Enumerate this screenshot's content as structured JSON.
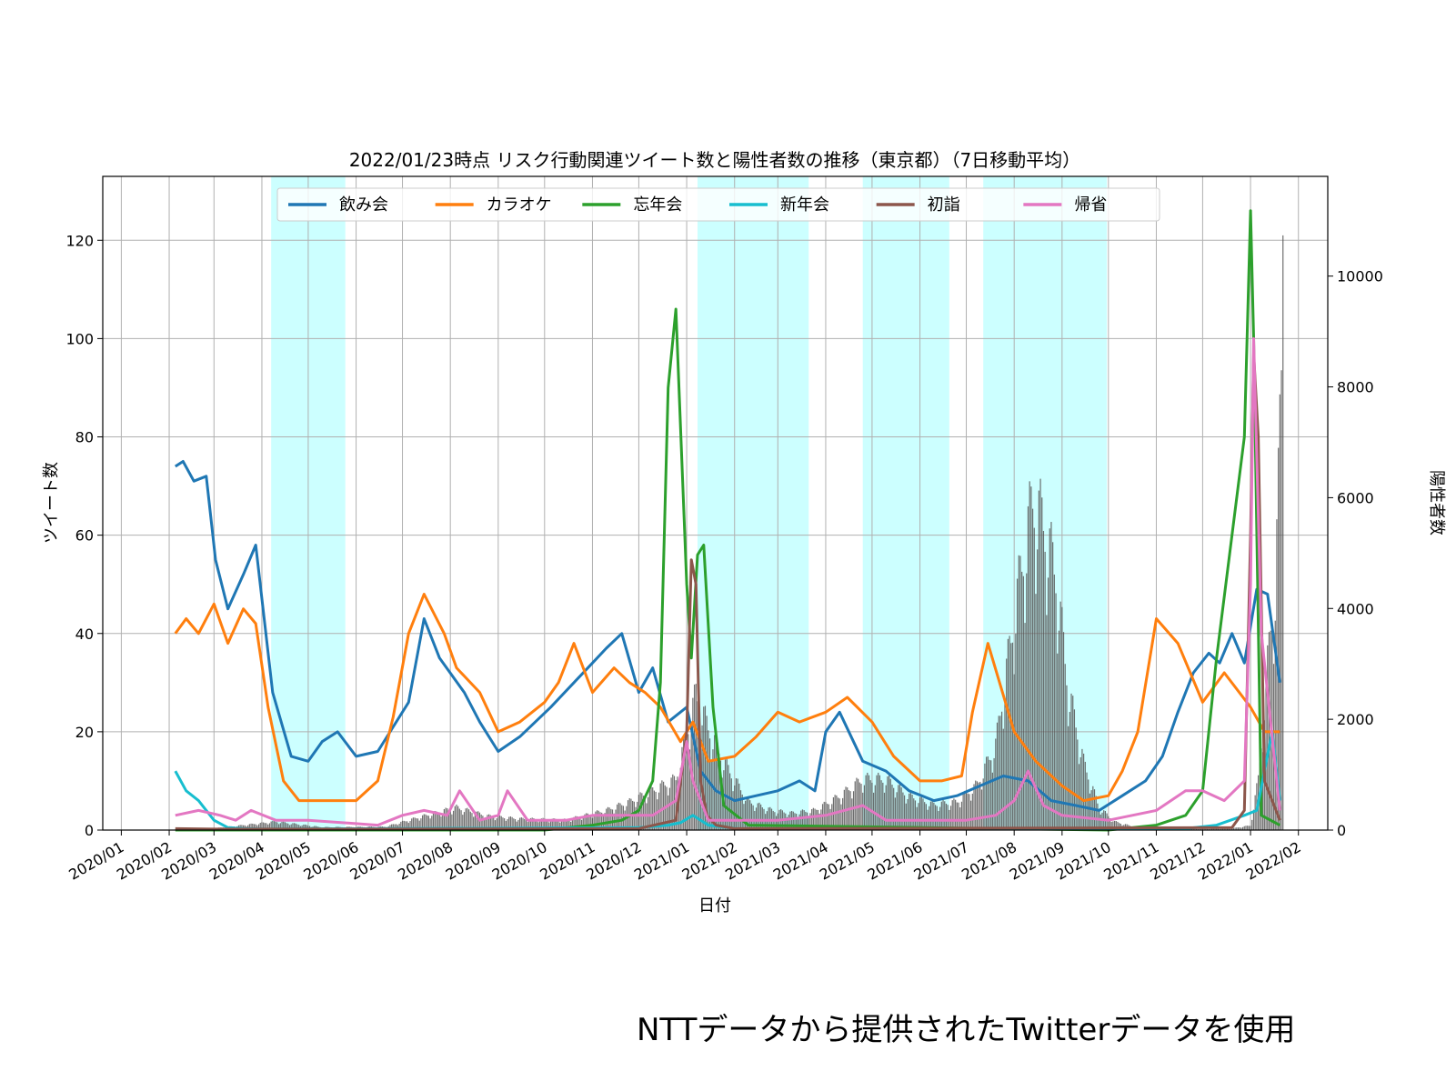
{
  "chart_data": {
    "type": "line",
    "title": "2022/01/23時点 リスク行動関連ツイート数と陽性者数の推移（東京都）（7日移動平均）",
    "xlabel": "日付",
    "ylabel_left": "ツイート数",
    "ylabel_right": "陽性者数",
    "xlim": [
      "2019-12-20",
      "2022-02-20"
    ],
    "ylim_left": [
      0,
      133
    ],
    "ylim_right": [
      0,
      11800
    ],
    "yticks_left": [
      0,
      20,
      40,
      60,
      80,
      100,
      120
    ],
    "yticks_right": [
      0,
      2000,
      4000,
      6000,
      8000,
      10000
    ],
    "x_tick_labels": [
      "2020/01",
      "2020/02",
      "2020/03",
      "2020/04",
      "2020/05",
      "2020/06",
      "2020/07",
      "2020/08",
      "2020/09",
      "2020/10",
      "2020/11",
      "2020/12",
      "2021/01",
      "2021/02",
      "2021/03",
      "2021/04",
      "2021/05",
      "2021/06",
      "2021/07",
      "2021/08",
      "2021/09",
      "2021/10",
      "2021/11",
      "2021/12",
      "2022/01",
      "2022/02"
    ],
    "x_tick_dates": [
      "2020-01-01",
      "2020-02-01",
      "2020-03-01",
      "2020-04-01",
      "2020-05-01",
      "2020-06-01",
      "2020-07-01",
      "2020-08-01",
      "2020-09-01",
      "2020-10-01",
      "2020-11-01",
      "2020-12-01",
      "2021-01-01",
      "2021-02-01",
      "2021-03-01",
      "2021-04-01",
      "2021-05-01",
      "2021-06-01",
      "2021-07-01",
      "2021-08-01",
      "2021-09-01",
      "2021-10-01",
      "2021-11-01",
      "2021-12-01",
      "2022-01-01",
      "2022-02-01"
    ],
    "grid": true,
    "legend_position": "top-center",
    "shaded_periods": [
      {
        "start": "2020-04-07",
        "end": "2020-05-25"
      },
      {
        "start": "2021-01-08",
        "end": "2021-03-21"
      },
      {
        "start": "2021-04-25",
        "end": "2021-06-20"
      },
      {
        "start": "2021-07-12",
        "end": "2021-09-30"
      }
    ],
    "series": [
      {
        "name": "飲み会",
        "color": "#1f77b4",
        "axis": "left",
        "x": [
          "2020-02-05",
          "2020-02-10",
          "2020-02-17",
          "2020-02-25",
          "2020-03-02",
          "2020-03-10",
          "2020-03-20",
          "2020-03-28",
          "2020-04-08",
          "2020-04-20",
          "2020-05-01",
          "2020-05-10",
          "2020-05-20",
          "2020-06-01",
          "2020-06-15",
          "2020-06-25",
          "2020-07-05",
          "2020-07-15",
          "2020-07-25",
          "2020-08-10",
          "2020-08-20",
          "2020-09-01",
          "2020-09-15",
          "2020-09-25",
          "2020-10-05",
          "2020-10-20",
          "2020-11-01",
          "2020-11-10",
          "2020-11-20",
          "2020-12-01",
          "2020-12-10",
          "2020-12-20",
          "2021-01-01",
          "2021-01-10",
          "2021-01-20",
          "2021-02-01",
          "2021-02-15",
          "2021-03-01",
          "2021-03-15",
          "2021-03-25",
          "2021-04-01",
          "2021-04-10",
          "2021-04-25",
          "2021-05-10",
          "2021-05-25",
          "2021-06-10",
          "2021-06-25",
          "2021-07-10",
          "2021-07-25",
          "2021-08-10",
          "2021-08-25",
          "2021-09-10",
          "2021-09-25",
          "2021-10-10",
          "2021-10-25",
          "2021-11-05",
          "2021-11-15",
          "2021-11-25",
          "2021-12-05",
          "2021-12-12",
          "2021-12-20",
          "2021-12-28",
          "2022-01-05",
          "2022-01-12",
          "2022-01-20"
        ],
        "y": [
          74,
          75,
          71,
          72,
          55,
          45,
          52,
          58,
          28,
          15,
          14,
          18,
          20,
          15,
          16,
          21,
          26,
          43,
          35,
          28,
          22,
          16,
          19,
          22,
          25,
          30,
          34,
          37,
          40,
          28,
          33,
          22,
          25,
          12,
          8,
          6,
          7,
          8,
          10,
          8,
          20,
          24,
          14,
          12,
          8,
          6,
          7,
          9,
          11,
          10,
          6,
          5,
          4,
          7,
          10,
          15,
          24,
          32,
          36,
          34,
          40,
          34,
          49,
          48,
          30
        ]
      },
      {
        "name": "カラオケ",
        "color": "#ff7f0e",
        "axis": "left",
        "x": [
          "2020-02-05",
          "2020-02-12",
          "2020-02-20",
          "2020-03-01",
          "2020-03-10",
          "2020-03-20",
          "2020-03-28",
          "2020-04-05",
          "2020-04-15",
          "2020-04-25",
          "2020-05-05",
          "2020-05-20",
          "2020-06-01",
          "2020-06-15",
          "2020-06-25",
          "2020-07-05",
          "2020-07-15",
          "2020-07-28",
          "2020-08-05",
          "2020-08-20",
          "2020-09-01",
          "2020-09-15",
          "2020-10-01",
          "2020-10-10",
          "2020-10-20",
          "2020-11-01",
          "2020-11-15",
          "2020-11-25",
          "2020-12-05",
          "2020-12-15",
          "2020-12-28",
          "2021-01-05",
          "2021-01-15",
          "2021-02-01",
          "2021-02-15",
          "2021-03-01",
          "2021-03-15",
          "2021-04-01",
          "2021-04-15",
          "2021-05-01",
          "2021-05-15",
          "2021-06-01",
          "2021-06-15",
          "2021-06-28",
          "2021-07-05",
          "2021-07-15",
          "2021-08-01",
          "2021-08-15",
          "2021-09-01",
          "2021-09-15",
          "2021-10-01",
          "2021-10-10",
          "2021-10-20",
          "2021-11-01",
          "2021-11-15",
          "2021-12-01",
          "2021-12-15",
          "2022-01-01",
          "2022-01-10",
          "2022-01-20"
        ],
        "y": [
          40,
          43,
          40,
          46,
          38,
          45,
          42,
          25,
          10,
          6,
          6,
          6,
          6,
          10,
          23,
          40,
          48,
          40,
          33,
          28,
          20,
          22,
          26,
          30,
          38,
          28,
          33,
          30,
          28,
          25,
          18,
          22,
          14,
          15,
          19,
          24,
          22,
          24,
          27,
          22,
          15,
          10,
          10,
          11,
          24,
          38,
          20,
          14,
          9,
          6,
          7,
          12,
          20,
          43,
          38,
          26,
          32,
          25,
          20,
          20
        ]
      },
      {
        "name": "忘年会",
        "color": "#2ca02c",
        "axis": "left",
        "x": [
          "2020-02-05",
          "2020-10-01",
          "2020-11-01",
          "2020-11-20",
          "2020-12-01",
          "2020-12-10",
          "2020-12-15",
          "2020-12-20",
          "2020-12-25",
          "2021-01-01",
          "2021-01-04",
          "2021-01-08",
          "2021-01-12",
          "2021-01-18",
          "2021-01-25",
          "2021-02-10",
          "2021-10-01",
          "2021-11-01",
          "2021-11-20",
          "2021-12-01",
          "2021-12-10",
          "2021-12-20",
          "2021-12-28",
          "2022-01-01",
          "2022-01-03",
          "2022-01-08",
          "2022-01-20"
        ],
        "y": [
          0,
          0,
          1,
          2,
          4,
          10,
          30,
          90,
          106,
          50,
          35,
          56,
          58,
          25,
          5,
          1,
          0,
          1,
          3,
          8,
          35,
          60,
          80,
          126,
          100,
          3,
          1
        ]
      },
      {
        "name": "新年会",
        "color": "#17becf",
        "axis": "left",
        "x": [
          "2020-02-05",
          "2020-02-12",
          "2020-02-20",
          "2020-03-01",
          "2020-03-10",
          "2020-03-20",
          "2020-04-05",
          "2020-12-01",
          "2020-12-20",
          "2020-12-28",
          "2021-01-05",
          "2021-01-15",
          "2021-02-05",
          "2021-11-20",
          "2021-12-10",
          "2021-12-28",
          "2022-01-05",
          "2022-01-10",
          "2022-01-15",
          "2022-01-20"
        ],
        "y": [
          12,
          8,
          6,
          2,
          0.5,
          0.3,
          0.2,
          0.5,
          1,
          1.5,
          3,
          1,
          0.2,
          0.3,
          1,
          3,
          4,
          12,
          20,
          6
        ]
      },
      {
        "name": "初詣",
        "color": "#8c564b",
        "axis": "left",
        "x": [
          "2020-02-05",
          "2020-03-01",
          "2020-06-01",
          "2020-12-01",
          "2020-12-25",
          "2021-01-01",
          "2021-01-04",
          "2021-01-07",
          "2021-01-10",
          "2021-01-14",
          "2021-01-20",
          "2021-02-01",
          "2021-12-20",
          "2021-12-28",
          "2022-01-01",
          "2022-01-03",
          "2022-01-06",
          "2022-01-10",
          "2022-01-20"
        ],
        "y": [
          0.3,
          0.2,
          0.2,
          0.3,
          2,
          20,
          55,
          50,
          10,
          3,
          1,
          0.3,
          0.5,
          4,
          60,
          97,
          80,
          10,
          2
        ]
      },
      {
        "name": "帰省",
        "color": "#e377c2",
        "axis": "left",
        "x": [
          "2020-02-05",
          "2020-02-20",
          "2020-03-05",
          "2020-03-15",
          "2020-03-25",
          "2020-04-10",
          "2020-05-01",
          "2020-06-15",
          "2020-07-01",
          "2020-07-15",
          "2020-07-30",
          "2020-08-07",
          "2020-08-20",
          "2020-09-01",
          "2020-09-07",
          "2020-09-20",
          "2020-10-15",
          "2020-11-01",
          "2020-11-20",
          "2020-12-10",
          "2020-12-25",
          "2021-01-01",
          "2021-01-05",
          "2021-01-15",
          "2021-02-01",
          "2021-03-01",
          "2021-04-01",
          "2021-04-25",
          "2021-05-10",
          "2021-06-01",
          "2021-07-01",
          "2021-07-20",
          "2021-08-01",
          "2021-08-10",
          "2021-08-20",
          "2021-09-01",
          "2021-10-01",
          "2021-11-01",
          "2021-11-20",
          "2021-12-01",
          "2021-12-15",
          "2021-12-28",
          "2022-01-01",
          "2022-01-03",
          "2022-01-08",
          "2022-01-20"
        ],
        "y": [
          3,
          4,
          3,
          2,
          4,
          2,
          2,
          1,
          3,
          4,
          3,
          8,
          2,
          3,
          8,
          2,
          2,
          3,
          3,
          3,
          6,
          18,
          10,
          2,
          2,
          2,
          3,
          5,
          2,
          2,
          2,
          3,
          6,
          12,
          5,
          3,
          2,
          4,
          8,
          8,
          6,
          10,
          50,
          100,
          40,
          4
        ]
      },
      {
        "name": "陽性者数",
        "type": "bar",
        "color": "#555555",
        "axis": "right",
        "x": [
          "2020-03-01",
          "2020-04-10",
          "2020-05-10",
          "2020-06-20",
          "2020-07-15",
          "2020-08-05",
          "2020-08-25",
          "2020-09-15",
          "2020-10-15",
          "2020-11-10",
          "2020-11-25",
          "2020-12-10",
          "2020-12-25",
          "2021-01-07",
          "2021-01-15",
          "2021-01-25",
          "2021-02-10",
          "2021-02-25",
          "2021-03-10",
          "2021-03-25",
          "2021-04-10",
          "2021-04-25",
          "2021-05-10",
          "2021-05-25",
          "2021-06-10",
          "2021-06-25",
          "2021-07-08",
          "2021-07-20",
          "2021-07-28",
          "2021-08-05",
          "2021-08-13",
          "2021-08-20",
          "2021-08-28",
          "2021-09-05",
          "2021-09-15",
          "2021-09-25",
          "2021-10-05",
          "2021-10-20",
          "2021-11-10",
          "2021-12-01",
          "2021-12-20",
          "2022-01-01",
          "2022-01-06",
          "2022-01-10",
          "2022-01-14",
          "2022-01-17",
          "2022-01-19",
          "2022-01-21",
          "2022-01-22"
        ],
        "y": [
          30,
          150,
          50,
          60,
          250,
          400,
          250,
          200,
          180,
          350,
          500,
          700,
          900,
          2400,
          1800,
          1200,
          500,
          350,
          300,
          350,
          600,
          900,
          900,
          600,
          450,
          500,
          800,
          1500,
          3000,
          4500,
          5800,
          5400,
          4500,
          2500,
          1200,
          400,
          150,
          40,
          25,
          20,
          30,
          80,
          900,
          2200,
          3600,
          4200,
          6000,
          8300,
          11300
        ]
      }
    ]
  },
  "footer": {
    "note": "NTTデータから提供されたTwitterデータを使用"
  }
}
